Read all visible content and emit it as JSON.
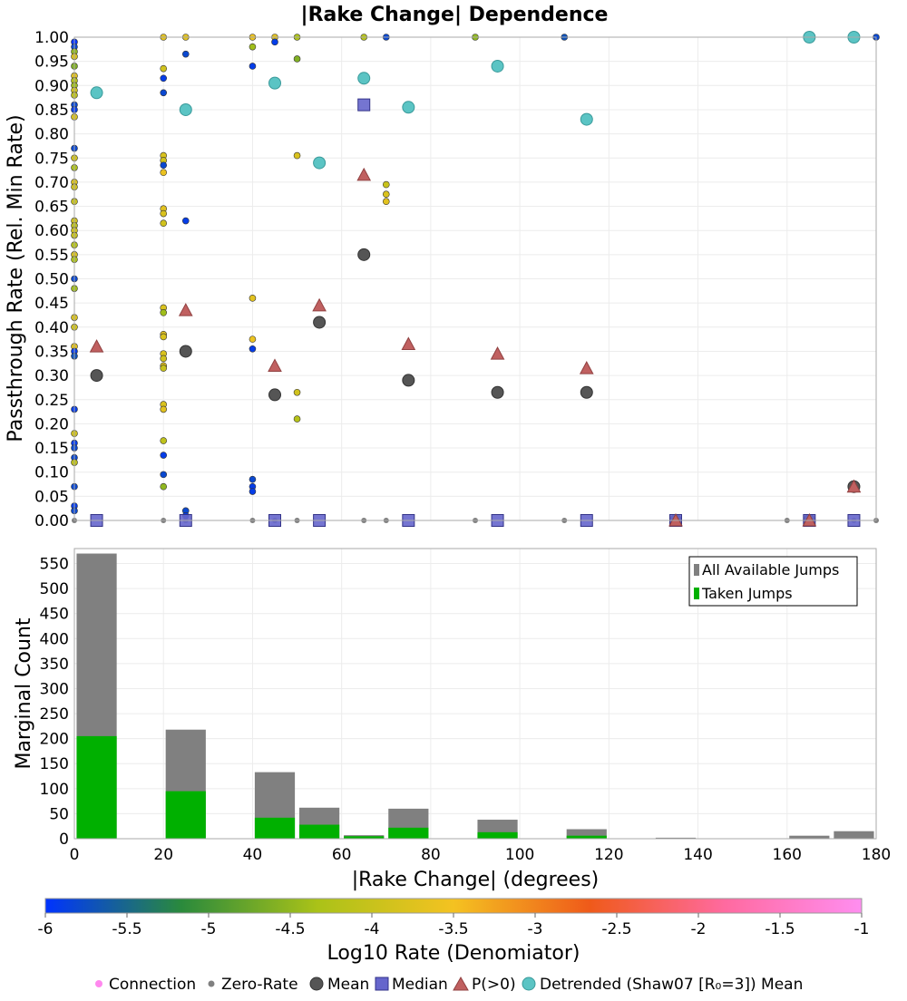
{
  "chart_data": [
    {
      "type": "scatter",
      "title": "|Rake Change| Dependence",
      "xlabel": "",
      "ylabel": "Passthrough Rate (Rel. Min Rate)",
      "xlim": [
        0,
        180
      ],
      "ylim": [
        0,
        1
      ],
      "yticks": [
        "0.00",
        "0.05",
        "0.10",
        "0.15",
        "0.20",
        "0.25",
        "0.30",
        "0.35",
        "0.40",
        "0.45",
        "0.50",
        "0.55",
        "0.60",
        "0.65",
        "0.70",
        "0.75",
        "0.80",
        "0.85",
        "0.90",
        "0.95",
        "1.00"
      ],
      "grid": true,
      "series": [
        {
          "name": "Mean",
          "color": "#555555",
          "points": [
            [
              5,
              0.3
            ],
            [
              25,
              0.35
            ],
            [
              45,
              0.26
            ],
            [
              55,
              0.41
            ],
            [
              65,
              0.55
            ],
            [
              75,
              0.29
            ],
            [
              95,
              0.265
            ],
            [
              115,
              0.265
            ],
            [
              135,
              0.0
            ],
            [
              165,
              0.0
            ],
            [
              175,
              0.07
            ]
          ]
        },
        {
          "name": "Median",
          "color": "#6666cc",
          "points": [
            [
              5,
              0.0
            ],
            [
              25,
              0.0
            ],
            [
              45,
              0.0
            ],
            [
              55,
              0.0
            ],
            [
              65,
              0.86
            ],
            [
              75,
              0.0
            ],
            [
              95,
              0.0
            ],
            [
              115,
              0.0
            ],
            [
              135,
              0.0
            ],
            [
              165,
              0.0
            ],
            [
              175,
              0.0
            ]
          ]
        },
        {
          "name": "P(>0)",
          "color": "#c06060",
          "points": [
            [
              5,
              0.36
            ],
            [
              25,
              0.435
            ],
            [
              45,
              0.32
            ],
            [
              55,
              0.445
            ],
            [
              65,
              0.715
            ],
            [
              75,
              0.365
            ],
            [
              95,
              0.345
            ],
            [
              115,
              0.315
            ],
            [
              135,
              0.0
            ],
            [
              165,
              0.0
            ],
            [
              175,
              0.07
            ]
          ]
        },
        {
          "name": "Detrended (Shaw07 [R₀=3]) Mean",
          "color": "#5bc4c4",
          "points": [
            [
              5,
              0.885
            ],
            [
              25,
              0.85
            ],
            [
              45,
              0.905
            ],
            [
              55,
              0.74
            ],
            [
              65,
              0.915
            ],
            [
              75,
              0.855
            ],
            [
              95,
              0.94
            ],
            [
              115,
              0.83
            ],
            [
              165,
              1.0
            ],
            [
              175,
              1.0
            ]
          ]
        },
        {
          "name": "Connection",
          "points": [
            [
              0,
              0.99,
              -6.0
            ],
            [
              0,
              0.98,
              -5.8
            ],
            [
              0,
              0.97,
              -4.5
            ],
            [
              0,
              0.96,
              -3.8
            ],
            [
              0,
              0.94,
              -4.6
            ],
            [
              0,
              0.92,
              -3.7
            ],
            [
              0,
              0.91,
              -4.2
            ],
            [
              0,
              0.9,
              -4.4
            ],
            [
              0,
              0.89,
              -3.9
            ],
            [
              0,
              0.88,
              -4.1
            ],
            [
              0,
              0.86,
              -5.8
            ],
            [
              0,
              0.85,
              -5.9
            ],
            [
              0,
              0.835,
              -3.8
            ],
            [
              0,
              0.77,
              -5.8
            ],
            [
              0,
              0.75,
              -3.9
            ],
            [
              0,
              0.73,
              -4.3
            ],
            [
              0,
              0.7,
              -3.8
            ],
            [
              0,
              0.69,
              -3.9
            ],
            [
              0,
              0.66,
              -4.0
            ],
            [
              0,
              0.62,
              -3.9
            ],
            [
              0,
              0.61,
              -4.1
            ],
            [
              0,
              0.6,
              -3.9
            ],
            [
              0,
              0.59,
              -4.0
            ],
            [
              0,
              0.57,
              -4.2
            ],
            [
              0,
              0.55,
              -3.8
            ],
            [
              0,
              0.54,
              -4.3
            ],
            [
              0,
              0.5,
              -5.8
            ],
            [
              0,
              0.48,
              -4.4
            ],
            [
              0,
              0.42,
              -3.8
            ],
            [
              0,
              0.4,
              -3.9
            ],
            [
              0,
              0.36,
              -3.7
            ],
            [
              0,
              0.35,
              -5.9
            ],
            [
              0,
              0.34,
              -5.7
            ],
            [
              0,
              0.23,
              -5.9
            ],
            [
              0,
              0.18,
              -3.9
            ],
            [
              0,
              0.16,
              -5.9
            ],
            [
              0,
              0.15,
              -5.8
            ],
            [
              0,
              0.13,
              -5.8
            ],
            [
              0,
              0.12,
              -4.1
            ],
            [
              0,
              0.07,
              -5.8
            ],
            [
              0,
              0.03,
              -5.9
            ],
            [
              0,
              0.02,
              -5.8
            ],
            [
              20,
              1.0,
              -3.7
            ],
            [
              20,
              0.935,
              -3.9
            ],
            [
              20,
              0.915,
              -5.9
            ],
            [
              20,
              0.885,
              -5.8
            ],
            [
              20,
              0.755,
              -3.8
            ],
            [
              20,
              0.745,
              -3.9
            ],
            [
              20,
              0.735,
              -5.8
            ],
            [
              20,
              0.72,
              -3.6
            ],
            [
              20,
              0.645,
              -3.7
            ],
            [
              20,
              0.635,
              -3.8
            ],
            [
              20,
              0.615,
              -3.9
            ],
            [
              20,
              0.44,
              -3.8
            ],
            [
              20,
              0.43,
              -4.4
            ],
            [
              20,
              0.385,
              -3.7
            ],
            [
              20,
              0.38,
              -3.8
            ],
            [
              20,
              0.345,
              -3.8
            ],
            [
              20,
              0.335,
              -3.9
            ],
            [
              20,
              0.32,
              -3.7
            ],
            [
              20,
              0.315,
              -4.0
            ],
            [
              20,
              0.24,
              -3.8
            ],
            [
              20,
              0.23,
              -3.7
            ],
            [
              20,
              0.165,
              -4.1
            ],
            [
              20,
              0.135,
              -5.9
            ],
            [
              20,
              0.095,
              -5.8
            ],
            [
              20,
              0.07,
              -4.5
            ],
            [
              25,
              1.0,
              -3.7
            ],
            [
              25,
              0.965,
              -5.8
            ],
            [
              25,
              0.62,
              -5.9
            ],
            [
              25,
              0.02,
              -5.8
            ],
            [
              25,
              0.01,
              -5.9
            ],
            [
              40,
              1.0,
              -3.6
            ],
            [
              40,
              0.98,
              -4.4
            ],
            [
              40,
              0.94,
              -5.9
            ],
            [
              40,
              0.46,
              -3.7
            ],
            [
              40,
              0.375,
              -3.6
            ],
            [
              40,
              0.355,
              -5.9
            ],
            [
              40,
              0.085,
              -5.8
            ],
            [
              40,
              0.07,
              -5.9
            ],
            [
              40,
              0.06,
              -5.9
            ],
            [
              45,
              1.0,
              -3.7
            ],
            [
              45,
              0.99,
              -5.9
            ],
            [
              50,
              1.0,
              -4.3
            ],
            [
              50,
              0.955,
              -4.6
            ],
            [
              50,
              0.755,
              -3.8
            ],
            [
              50,
              0.265,
              -3.9
            ],
            [
              50,
              0.21,
              -4.2
            ],
            [
              65,
              1.0,
              -4.2
            ],
            [
              70,
              1.0,
              -5.8
            ],
            [
              70,
              0.695,
              -4.0
            ],
            [
              70,
              0.675,
              -3.8
            ],
            [
              70,
              0.66,
              -3.7
            ],
            [
              90,
              1.0,
              -4.5
            ],
            [
              110,
              1.0,
              -5.7
            ],
            [
              180,
              1.0,
              -5.8
            ]
          ]
        },
        {
          "name": "Zero-Rate",
          "points": [
            [
              0,
              0.0
            ],
            [
              20,
              0.0
            ],
            [
              25,
              0.0
            ],
            [
              40,
              0.0
            ],
            [
              45,
              0.0
            ],
            [
              50,
              0.0
            ],
            [
              65,
              0.0
            ],
            [
              70,
              0.0
            ],
            [
              90,
              0.0
            ],
            [
              110,
              0.0
            ],
            [
              135,
              0.0
            ],
            [
              160,
              0.0
            ],
            [
              165,
              0.0
            ],
            [
              175,
              0.0
            ],
            [
              180,
              0.0
            ]
          ]
        }
      ],
      "colorbar": {
        "label": "Log10 Rate (Denomiator)",
        "min": -6,
        "max": -1,
        "ticks": [
          "-6",
          "-5.5",
          "-5",
          "-4.5",
          "-4",
          "-3.5",
          "-3",
          "-2.5",
          "-2",
          "-1.5",
          "-1"
        ],
        "stops": [
          "#0033ff",
          "#2a8a3c",
          "#aac218",
          "#f4c221",
          "#ef5a1a",
          "#ff6aa0",
          "#ff8ef0"
        ]
      }
    },
    {
      "type": "bar",
      "title": "",
      "xlabel": "|Rake Change| (degrees)",
      "ylabel": "Marginal Count",
      "xlim": [
        0,
        180
      ],
      "ylim": [
        0,
        580
      ],
      "xticks": [
        "0",
        "20",
        "40",
        "60",
        "80",
        "100",
        "120",
        "140",
        "160",
        "180"
      ],
      "yticks": [
        "0",
        "50",
        "100",
        "150",
        "200",
        "250",
        "300",
        "350",
        "400",
        "450",
        "500",
        "550"
      ],
      "grid": true,
      "legend_position": "top-right",
      "bin_width": 9,
      "series": [
        {
          "name": "All Available Jumps",
          "color": "#808080",
          "points": [
            [
              5,
              570
            ],
            [
              25,
              218
            ],
            [
              45,
              133
            ],
            [
              55,
              62
            ],
            [
              65,
              7
            ],
            [
              75,
              60
            ],
            [
              95,
              38
            ],
            [
              115,
              19
            ],
            [
              135,
              2
            ],
            [
              165,
              6
            ],
            [
              175,
              15
            ]
          ]
        },
        {
          "name": "Taken Jumps",
          "color": "#00b000",
          "points": [
            [
              5,
              205
            ],
            [
              25,
              95
            ],
            [
              45,
              42
            ],
            [
              55,
              28
            ],
            [
              65,
              5
            ],
            [
              75,
              22
            ],
            [
              95,
              13
            ],
            [
              115,
              6
            ],
            [
              135,
              0
            ],
            [
              165,
              0
            ],
            [
              175,
              0
            ]
          ]
        }
      ]
    }
  ],
  "legend_labels": {
    "connection": "Connection",
    "zero_rate": "Zero-Rate",
    "mean": "Mean",
    "median": "Median",
    "p_positive": "P(>0)",
    "detrended": "Detrended (Shaw07 [R₀=3]) Mean"
  },
  "colors": {
    "connection": "#ff88ee",
    "zero_rate": "#808080",
    "mean": "#555555",
    "median": "#6666cc",
    "p_positive": "#c06060",
    "detrended": "#5bc4c4",
    "grid": "#ececec",
    "frame": "#aaaaaa"
  }
}
